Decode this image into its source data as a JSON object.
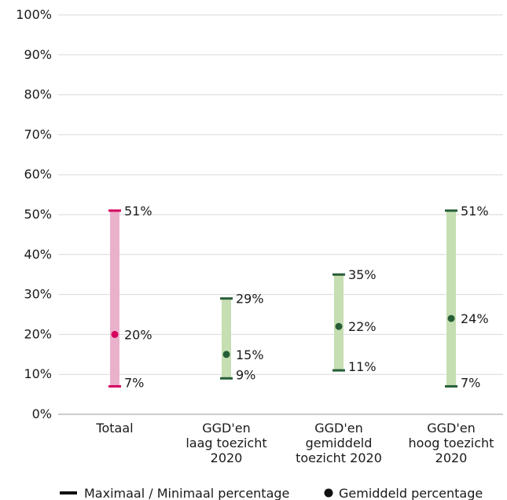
{
  "chart_data": {
    "type": "range",
    "title": "",
    "xlabel": "",
    "ylabel": "",
    "ylim": [
      0,
      100
    ],
    "y_ticks": [
      "0%",
      "10%",
      "20%",
      "30%",
      "40%",
      "50%",
      "60%",
      "70%",
      "80%",
      "90%",
      "100%"
    ],
    "grid": "horizontal",
    "legend": {
      "position": "bottom",
      "items": [
        {
          "label": "Maximaal / Minimaal  percentage",
          "marker": "line"
        },
        {
          "label": "Gemiddeld percentage",
          "marker": "dot"
        }
      ]
    },
    "categories": [
      {
        "label_lines": [
          "Totaal"
        ],
        "min": 7,
        "max": 51,
        "avg": 20,
        "min_label": "7%",
        "max_label": "51%",
        "avg_label": "20%",
        "bar_color": "#eab1cd",
        "mark_color": "#d6005f"
      },
      {
        "label_lines": [
          "GGD'en",
          "laag toezicht",
          "2020"
        ],
        "min": 9,
        "max": 29,
        "avg": 15,
        "min_label": "9%",
        "max_label": "29%",
        "avg_label": "15%",
        "bar_color": "#c5deb2",
        "mark_color": "#275e37"
      },
      {
        "label_lines": [
          "GGD'en",
          "gemiddeld",
          "toezicht 2020"
        ],
        "min": 11,
        "max": 35,
        "avg": 22,
        "min_label": "11%",
        "max_label": "35%",
        "avg_label": "22%",
        "bar_color": "#c5deb2",
        "mark_color": "#275e37"
      },
      {
        "label_lines": [
          "GGD'en",
          "hoog toezicht",
          "2020"
        ],
        "min": 7,
        "max": 51,
        "avg": 24,
        "min_label": "7%",
        "max_label": "51%",
        "avg_label": "24%",
        "bar_color": "#c5deb2",
        "mark_color": "#275e37"
      }
    ]
  }
}
